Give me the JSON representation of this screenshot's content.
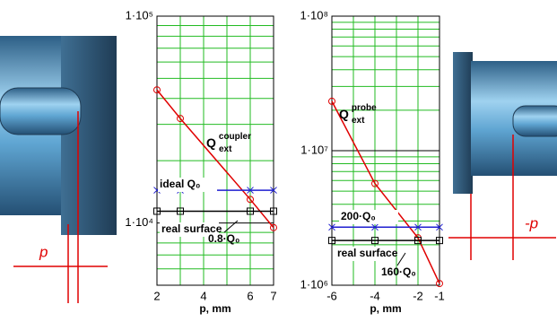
{
  "chart_data": [
    {
      "type": "line",
      "log_y": true,
      "grid": true,
      "grid_color": "#22bb22",
      "x_label": "p, mm",
      "xlim": [
        2,
        7
      ],
      "xticks": [
        2,
        4,
        6,
        7
      ],
      "minor_xticks": [
        3,
        5
      ],
      "ylim": [
        5000,
        100000
      ],
      "yticks": [
        {
          "value": 10000,
          "label": "1·10⁴"
        },
        {
          "value": 100000,
          "label": "1·10⁵"
        }
      ],
      "minor_yticks": [
        6000,
        7000,
        8000,
        9000,
        20000,
        30000,
        40000,
        50000,
        60000,
        70000,
        80000,
        90000
      ],
      "series": [
        {
          "name": {
            "base": "Q",
            "sup": "coupler",
            "sub": "ext"
          },
          "color": "#e00000",
          "marker": "circle",
          "x": [
            2,
            3,
            6,
            7
          ],
          "values": [
            44000,
            32000,
            13000,
            9500
          ]
        },
        {
          "name": "ideal Q₀",
          "color": "#1f1fd0",
          "marker": "x",
          "x": [
            2,
            3,
            6,
            7
          ],
          "values": [
            14400,
            14400,
            14400,
            14400
          ]
        },
        {
          "name": "real surface",
          "color": "#000000",
          "marker": "square",
          "x": [
            2,
            3,
            6,
            7
          ],
          "values": [
            11400,
            11400,
            11400,
            11400
          ]
        }
      ],
      "annotations": [
        "0.8·Q₀"
      ]
    },
    {
      "type": "line",
      "log_y": true,
      "grid": true,
      "grid_color": "#22bb22",
      "x_label": "p, mm",
      "xlim": [
        -6,
        -1
      ],
      "xticks": [
        -6,
        -4,
        -2,
        -1
      ],
      "minor_xticks": [
        -5,
        -3
      ],
      "ylim": [
        1000000,
        100000000
      ],
      "yticks": [
        {
          "value": 1000000,
          "label": "1·10⁶"
        },
        {
          "value": 10000000,
          "label": "1·10⁷"
        },
        {
          "value": 100000000,
          "label": "1·10⁸"
        }
      ],
      "minor_yticks": [
        2000000,
        3000000,
        4000000,
        5000000,
        6000000,
        7000000,
        8000000,
        9000000,
        20000000,
        30000000,
        40000000,
        50000000,
        60000000,
        70000000,
        80000000,
        90000000
      ],
      "series": [
        {
          "name": {
            "base": "Q",
            "sup": "probe",
            "sub": "ext"
          },
          "color": "#e00000",
          "marker": "circle",
          "x": [
            -6,
            -4,
            -2,
            -1
          ],
          "values": [
            23300000,
            5700000,
            2250000,
            1030000
          ]
        },
        {
          "name": "200·Q₀",
          "color": "#1f1fd0",
          "marker": "x",
          "x": [
            -6,
            -4,
            -2,
            -1
          ],
          "values": [
            2700000,
            2700000,
            2700000,
            2700000
          ]
        },
        {
          "name": "real surface",
          "color": "#000000",
          "marker": "square",
          "x": [
            -6,
            -4,
            -2,
            -1
          ],
          "values": [
            2150000,
            2150000,
            2150000,
            2150000
          ]
        }
      ],
      "annotations": [
        "160·Q₀"
      ]
    }
  ],
  "image_labels": {
    "left": "p",
    "right": "-p"
  }
}
